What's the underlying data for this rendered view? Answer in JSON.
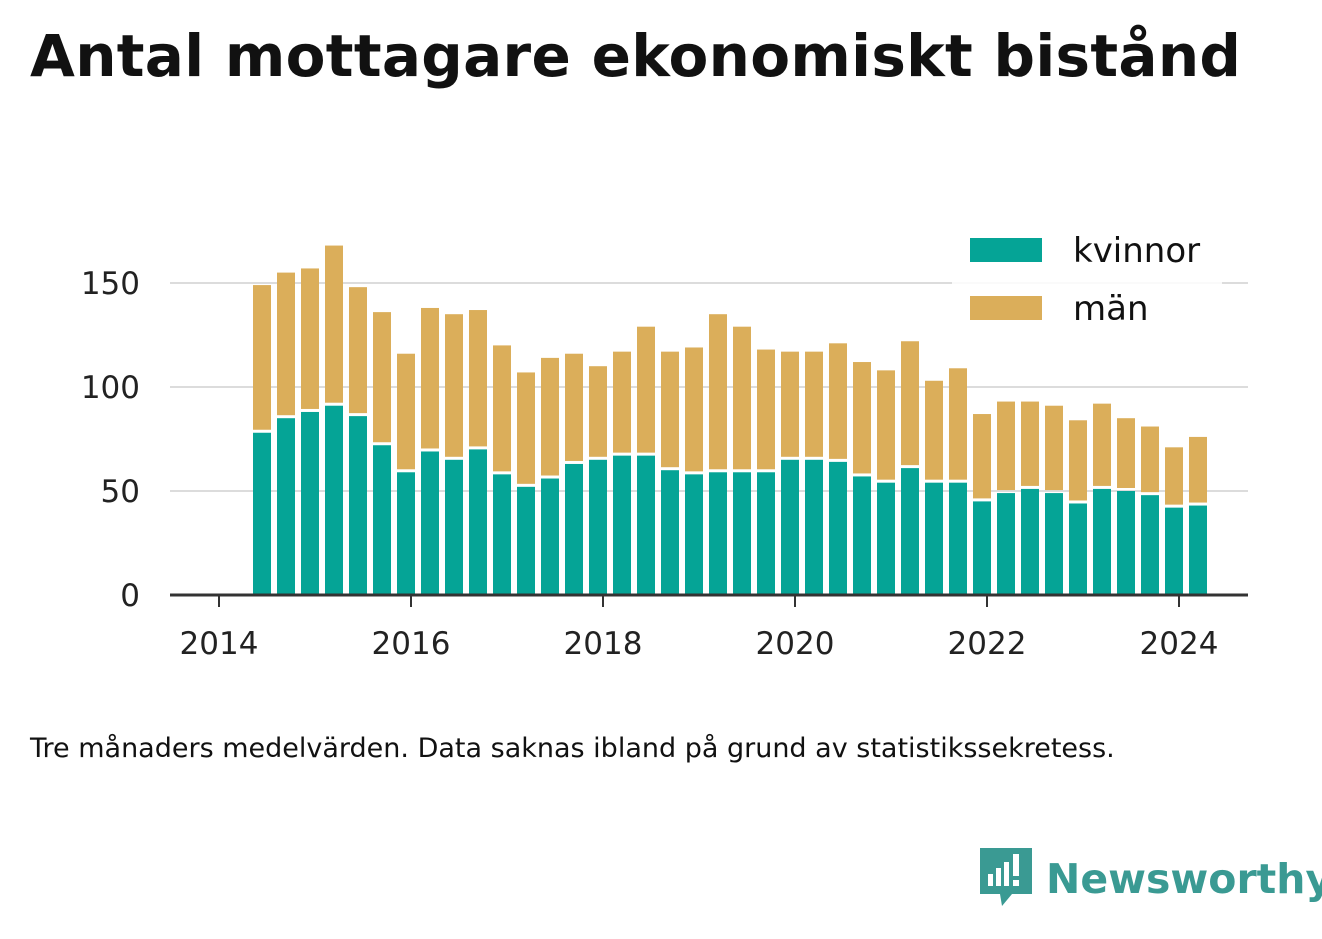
{
  "title": "Antal mottagare ekonomiskt bistånd",
  "note": "Tre månaders medelvärden. Data saknas ibland på grund av statistikssekretess.",
  "brand": {
    "name": "Newsworthy",
    "icon": "newsworthy-logo-icon",
    "color": "#3a9a93"
  },
  "chart_data": {
    "type": "bar",
    "stacked": true,
    "x_ticks": [
      "2014",
      "2016",
      "2018",
      "2020",
      "2022",
      "2024"
    ],
    "y_ticks": [
      0,
      50,
      100,
      150
    ],
    "ylim": [
      0,
      175
    ],
    "grid": true,
    "legend_position": "top-right",
    "categories": [
      "2014 Q2",
      "2014 Q3",
      "2014 Q4",
      "2015 Q1",
      "2015 Q2",
      "2015 Q3",
      "2015 Q4",
      "2016 Q1",
      "2016 Q2",
      "2016 Q3",
      "2016 Q4",
      "2017 Q1",
      "2017 Q2",
      "2017 Q3",
      "2017 Q4",
      "2018 Q1",
      "2018 Q2",
      "2018 Q3",
      "2018 Q4",
      "2019 Q1",
      "2019 Q2",
      "2019 Q3",
      "2019 Q4",
      "2020 Q1",
      "2020 Q2",
      "2020 Q3",
      "2020 Q4",
      "2021 Q1",
      "2021 Q2",
      "2021 Q3",
      "2021 Q4",
      "2022 Q1",
      "2022 Q2",
      "2022 Q3",
      "2022 Q4",
      "2023 Q1",
      "2023 Q2",
      "2023 Q3",
      "2023 Q4",
      "2024 Q1"
    ],
    "series": [
      {
        "name": "kvinnor",
        "color": "#05a496",
        "values": [
          78,
          85,
          88,
          91,
          86,
          72,
          59,
          69,
          65,
          70,
          58,
          52,
          56,
          63,
          65,
          67,
          67,
          60,
          58,
          59,
          59,
          59,
          65,
          65,
          64,
          57,
          54,
          61,
          54,
          54,
          45,
          49,
          51,
          49,
          44,
          51,
          50,
          48,
          42,
          43
        ]
      },
      {
        "name": "män",
        "color": "#dbae5a",
        "values": [
          71,
          70,
          69,
          77,
          62,
          64,
          57,
          69,
          70,
          67,
          62,
          55,
          58,
          53,
          45,
          50,
          62,
          57,
          61,
          76,
          70,
          59,
          52,
          52,
          57,
          55,
          54,
          61,
          49,
          55,
          42,
          44,
          42,
          42,
          40,
          41,
          35,
          33,
          29,
          33
        ]
      }
    ]
  }
}
